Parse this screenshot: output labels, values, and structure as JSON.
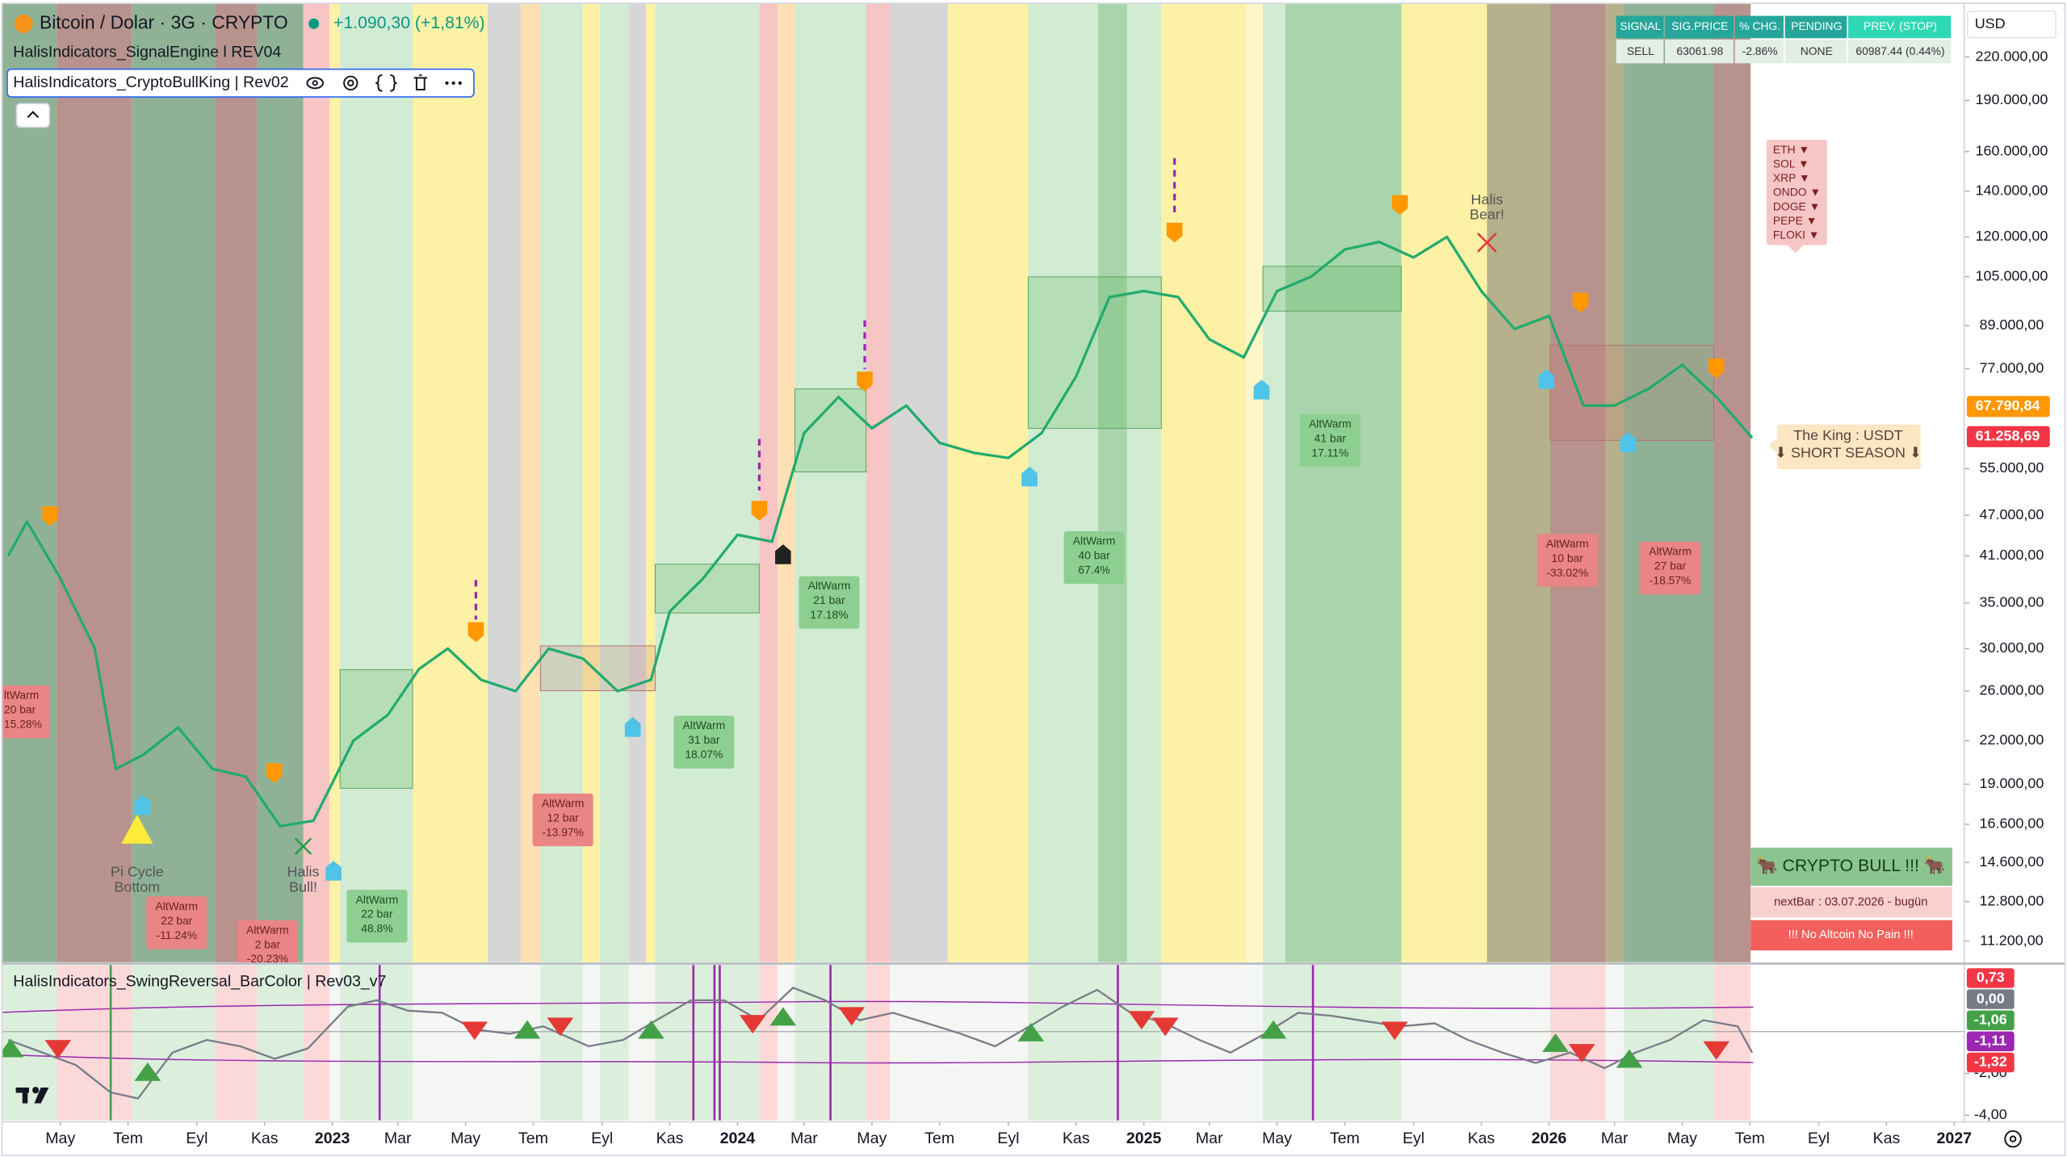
{
  "header": {
    "symbol": "Bitcoin / Dolar · 3G · CRYPTO",
    "change": "+1.090,30 (+1,81%)",
    "indicators": [
      "HalisIndicators_SignalEngine l REV04",
      "HalisIndicators_CryptoBullKing | Rev02"
    ],
    "currency": "USD"
  },
  "signal_table": {
    "headers": [
      "SIGNAL",
      "SIG.PRICE",
      "% CHG.",
      "PENDING",
      "PREV. (STOP)"
    ],
    "row": [
      "SELL",
      "63061.98",
      "-2.86%",
      "NONE",
      "60987.44 (0.44%)"
    ]
  },
  "alt_list": [
    "ETH ▼",
    "SOL ▼",
    "XRP ▼",
    "ONDO ▼",
    "DOGE ▼",
    "PEPE ▼",
    "FLOKI ▼"
  ],
  "king_label": [
    "The King : USDT",
    "⬇ SHORT SEASON ⬇"
  ],
  "annotations": [
    {
      "lines": [
        "Pi Cycle",
        "Bottom"
      ]
    },
    {
      "lines": [
        "Halis",
        "Bull!"
      ]
    },
    {
      "lines": [
        "Halis",
        "Bear!"
      ]
    }
  ],
  "altwarm": [
    {
      "lines": [
        "ltWarm",
        "20 bar",
        "15.28%"
      ],
      "color": "#e98585"
    },
    {
      "lines": [
        "AltWarm",
        "22 bar",
        "-11.24%"
      ],
      "color": "#e98585"
    },
    {
      "lines": [
        "AltWarm",
        "2 bar",
        "-20.23%"
      ],
      "color": "#e98585"
    },
    {
      "lines": [
        "AltWarm",
        "22 bar",
        "48.8%"
      ],
      "color": "#8dcf90"
    },
    {
      "lines": [
        "AltWarm",
        "12 bar",
        "-13.97%"
      ],
      "color": "#e98585"
    },
    {
      "lines": [
        "AltWarm",
        "31 bar",
        "18.07%"
      ],
      "color": "#8dcf90"
    },
    {
      "lines": [
        "AltWarm",
        "21 bar",
        "17.18%"
      ],
      "color": "#8dcf90"
    },
    {
      "lines": [
        "AltWarm",
        "40 bar",
        "67.4%"
      ],
      "color": "#8dcf90"
    },
    {
      "lines": [
        "AltWarm",
        "41 bar",
        "17.11%"
      ],
      "color": "#8dcf90"
    },
    {
      "lines": [
        "AltWarm",
        "10 bar",
        "-33.02%"
      ],
      "color": "#e98585"
    },
    {
      "lines": [
        "AltWarm",
        "27 bar",
        "-18.57%"
      ],
      "color": "#e98585"
    }
  ],
  "bull_panel": [
    "🐂 CRYPTO BULL !!! 🐂",
    "nextBar : 03.07.2026 - bugün",
    "!!! No Altcoin No Pain !!!"
  ],
  "chart_data": [
    {
      "type": "line",
      "title": "Bitcoin / Dolar · 3G · CRYPTO",
      "log_scale": true,
      "color": "#22ab6e",
      "xlim": [
        "2022-03-10",
        "2027-01-10"
      ],
      "x": [
        "2022-03-15",
        "2022-04-01",
        "2022-05-01",
        "2022-06-01",
        "2022-06-20",
        "2022-07-15",
        "2022-08-15",
        "2022-09-15",
        "2022-10-15",
        "2022-11-15",
        "2022-12-15",
        "2023-01-20",
        "2023-02-20",
        "2023-03-20",
        "2023-04-15",
        "2023-05-15",
        "2023-06-15",
        "2023-07-15",
        "2023-08-15",
        "2023-09-15",
        "2023-10-15",
        "2023-11-01",
        "2023-12-01",
        "2024-01-01",
        "2024-02-01",
        "2024-03-01",
        "2024-04-01",
        "2024-05-01",
        "2024-06-01",
        "2024-07-01",
        "2024-08-01",
        "2024-09-01",
        "2024-10-01",
        "2024-11-01",
        "2024-12-01",
        "2025-01-01",
        "2025-02-01",
        "2025-03-01",
        "2025-04-01",
        "2025-05-01",
        "2025-06-01",
        "2025-07-01",
        "2025-08-01",
        "2025-09-01",
        "2025-10-01",
        "2025-11-01",
        "2025-12-01",
        "2026-01-01",
        "2026-02-01",
        "2026-03-01",
        "2026-04-01",
        "2026-05-01",
        "2026-06-01",
        "2026-07-03"
      ],
      "values": [
        41000,
        46000,
        38000,
        30000,
        20000,
        21000,
        23000,
        20000,
        19500,
        16500,
        16800,
        22000,
        24000,
        28000,
        30000,
        27000,
        26000,
        30000,
        29000,
        26000,
        27000,
        34000,
        38000,
        44000,
        43000,
        62000,
        70000,
        63000,
        68000,
        60000,
        58000,
        57000,
        62000,
        75000,
        98000,
        100000,
        98000,
        85000,
        80000,
        100000,
        105000,
        115000,
        118000,
        112000,
        120000,
        100000,
        88000,
        92000,
        68000,
        68000,
        72000,
        78000,
        70000,
        61000
      ],
      "ylim": [
        10430,
        263000
      ],
      "yticks": [
        {
          "value": 220000,
          "label": "220.000,00"
        },
        {
          "value": 190000,
          "label": "190.000,00"
        },
        {
          "value": 160000,
          "label": "160.000,00"
        },
        {
          "value": 140000,
          "label": "140.000,00"
        },
        {
          "value": 120000,
          "label": "120.000,00"
        },
        {
          "value": 105000,
          "label": "105.000,00"
        },
        {
          "value": 89000,
          "label": "89.000,00"
        },
        {
          "value": 77000,
          "label": "77.000,00"
        },
        {
          "value": 55000,
          "label": "55.000,00"
        },
        {
          "value": 47000,
          "label": "47.000,00"
        },
        {
          "value": 41000,
          "label": "41.000,00"
        },
        {
          "value": 35000,
          "label": "35.000,00"
        },
        {
          "value": 30000,
          "label": "30.000,00"
        },
        {
          "value": 26000,
          "label": "26.000,00"
        },
        {
          "value": 22000,
          "label": "22.000,00"
        },
        {
          "value": 19000,
          "label": "19.000,00"
        },
        {
          "value": 16600,
          "label": "16.600,00"
        },
        {
          "value": 14600,
          "label": "14.600,00"
        },
        {
          "value": 12800,
          "label": "12.800,00"
        },
        {
          "value": 11200,
          "label": "11.200,00"
        }
      ],
      "value_tags": [
        {
          "value": 67790.84,
          "label": "67.790,84",
          "color": "#ff9800"
        },
        {
          "value": 61258.69,
          "label": "61.258,69",
          "color": "#f23645"
        }
      ],
      "xticks": [
        {
          "value": "2022-05-01",
          "label": "May"
        },
        {
          "value": "2022-07-01",
          "label": "Tem"
        },
        {
          "value": "2022-09-01",
          "label": "Eyl"
        },
        {
          "value": "2022-11-01",
          "label": "Kas"
        },
        {
          "value": "2023-01-01",
          "label": "2023"
        },
        {
          "value": "2023-03-01",
          "label": "Mar"
        },
        {
          "value": "2023-05-01",
          "label": "May"
        },
        {
          "value": "2023-07-01",
          "label": "Tem"
        },
        {
          "value": "2023-09-01",
          "label": "Eyl"
        },
        {
          "value": "2023-11-01",
          "label": "Kas"
        },
        {
          "value": "2024-01-01",
          "label": "2024"
        },
        {
          "value": "2024-03-01",
          "label": "Mar"
        },
        {
          "value": "2024-05-01",
          "label": "May"
        },
        {
          "value": "2024-07-01",
          "label": "Tem"
        },
        {
          "value": "2024-09-01",
          "label": "Eyl"
        },
        {
          "value": "2024-11-01",
          "label": "Kas"
        },
        {
          "value": "2025-01-01",
          "label": "2025"
        },
        {
          "value": "2025-03-01",
          "label": "Mar"
        },
        {
          "value": "2025-05-01",
          "label": "May"
        },
        {
          "value": "2025-07-01",
          "label": "Tem"
        },
        {
          "value": "2025-09-01",
          "label": "Eyl"
        },
        {
          "value": "2025-11-01",
          "label": "Kas"
        },
        {
          "value": "2026-01-01",
          "label": "2026"
        },
        {
          "value": "2026-03-01",
          "label": "Mar"
        },
        {
          "value": "2026-05-01",
          "label": "May"
        },
        {
          "value": "2026-07-01",
          "label": "Tem"
        },
        {
          "value": "2026-09-01",
          "label": "Eyl"
        },
        {
          "value": "2026-11-01",
          "label": "Kas"
        },
        {
          "value": "2027-01-01",
          "label": "2027"
        }
      ]
    },
    {
      "type": "line",
      "title": "HalisIndicators_SwingReversal_BarColor | Rev03_v7",
      "color": "#787b86",
      "xlim": [
        "2022-03-10",
        "2027-01-10"
      ],
      "x": [
        "2022-03-15",
        "2022-04-15",
        "2022-05-15",
        "2022-06-15",
        "2022-07-10",
        "2022-08-10",
        "2022-09-10",
        "2022-10-10",
        "2022-11-10",
        "2022-12-10",
        "2023-01-15",
        "2023-02-10",
        "2023-03-10",
        "2023-04-10",
        "2023-05-10",
        "2023-06-10",
        "2023-07-10",
        "2023-08-20",
        "2023-09-20",
        "2023-10-20",
        "2023-11-20",
        "2023-12-20",
        "2024-01-20",
        "2024-02-20",
        "2024-03-20",
        "2024-04-20",
        "2024-05-20",
        "2024-06-20",
        "2024-07-20",
        "2024-08-20",
        "2024-09-20",
        "2024-10-20",
        "2024-11-20",
        "2024-12-20",
        "2025-01-20",
        "2025-02-20",
        "2025-03-20",
        "2025-04-20",
        "2025-05-20",
        "2025-06-20",
        "2025-07-20",
        "2025-08-20",
        "2025-09-20",
        "2025-10-20",
        "2025-11-20",
        "2025-12-20",
        "2026-01-20",
        "2026-02-20",
        "2026-03-20",
        "2026-04-20",
        "2026-05-20",
        "2026-06-20",
        "2026-07-03"
      ],
      "values": [
        -0.4,
        -1,
        -1.6,
        -2.9,
        -3.2,
        -1,
        -0.4,
        -0.7,
        -1.3,
        -0.8,
        1.2,
        1.5,
        1,
        0.9,
        0.1,
        -0.1,
        0.25,
        -0.7,
        -0.4,
        0.55,
        1.5,
        1.5,
        0.55,
        2.1,
        1.5,
        0.55,
        0.9,
        0.4,
        -0.1,
        -0.7,
        0.25,
        1.2,
        2,
        0.9,
        0.4,
        -0.4,
        -1,
        -0.1,
        0.9,
        0.75,
        0.5,
        0.25,
        0.4,
        -0.4,
        -1,
        -1.5,
        -1,
        -1.75,
        -1,
        -0.4,
        0.55,
        0.25,
        -1
      ],
      "ylim": [
        -4.25,
        3.19
      ],
      "yticks": [
        {
          "value": -2,
          "label": "-2,00"
        },
        {
          "value": -4,
          "label": "-4,00"
        }
      ],
      "value_tags": [
        {
          "value": 0.73,
          "label": "0,73",
          "color": "#f23645"
        },
        {
          "value": 0,
          "label": "0,00",
          "color": "#787b86"
        },
        {
          "value": -1.06,
          "label": "-1,06",
          "color": "#43a047"
        },
        {
          "value": -1.11,
          "label": "-1,11",
          "color": "#9c27b0"
        },
        {
          "value": -1.32,
          "label": "-1,32",
          "color": "#f23645"
        }
      ]
    }
  ]
}
